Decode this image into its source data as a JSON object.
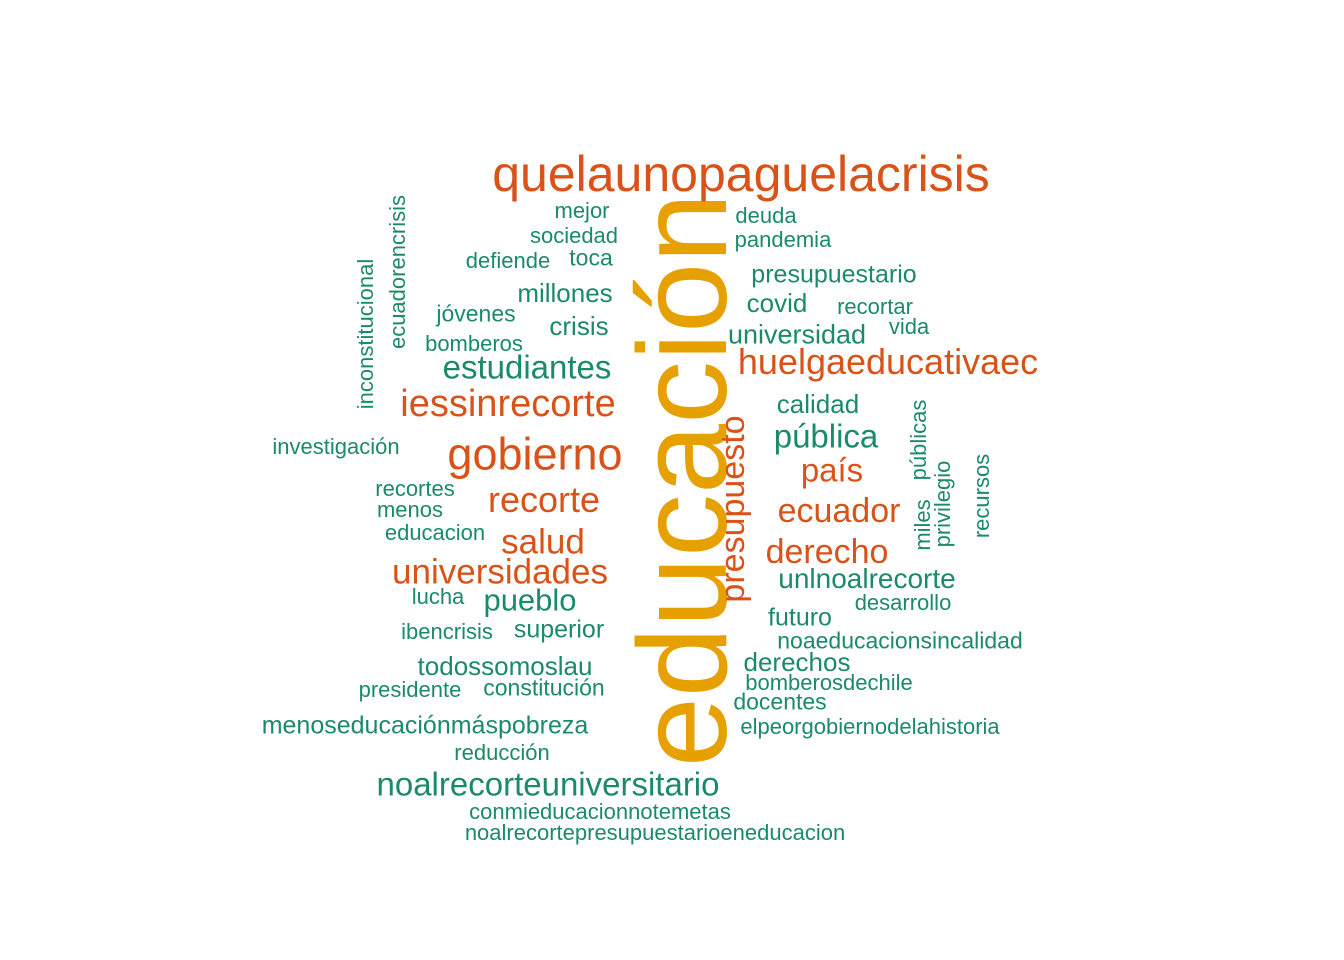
{
  "colors": {
    "top": "#E6A100",
    "mid": "#D95319",
    "low": "#1B8A6B"
  },
  "words": [
    {
      "text": "educación",
      "tier": "top"
    },
    {
      "text": "quelaunopaguelacrisis",
      "tier": "mid"
    },
    {
      "text": "gobierno",
      "tier": "mid"
    },
    {
      "text": "iessinrecorte",
      "tier": "mid"
    },
    {
      "text": "recorte",
      "tier": "mid"
    },
    {
      "text": "huelgaeducativaec",
      "tier": "mid"
    },
    {
      "text": "presupuesto",
      "tier": "mid"
    },
    {
      "text": "universidades",
      "tier": "mid"
    },
    {
      "text": "salud",
      "tier": "mid"
    },
    {
      "text": "ecuador",
      "tier": "mid"
    },
    {
      "text": "derecho",
      "tier": "mid"
    },
    {
      "text": "país",
      "tier": "mid"
    },
    {
      "text": "noalrecorteuniversitario",
      "tier": "low"
    },
    {
      "text": "estudiantes",
      "tier": "low"
    },
    {
      "text": "pública",
      "tier": "low"
    },
    {
      "text": "pueblo",
      "tier": "low"
    },
    {
      "text": "menoseducaciónmáspobreza",
      "tier": "low"
    },
    {
      "text": "todossomoslau",
      "tier": "low"
    },
    {
      "text": "universidad",
      "tier": "low"
    },
    {
      "text": "unlnoalrecorte",
      "tier": "low"
    },
    {
      "text": "superior",
      "tier": "low"
    },
    {
      "text": "derechos",
      "tier": "low"
    },
    {
      "text": "millones",
      "tier": "low"
    },
    {
      "text": "crisis",
      "tier": "low"
    },
    {
      "text": "calidad",
      "tier": "low"
    },
    {
      "text": "covid",
      "tier": "low"
    },
    {
      "text": "presupuestario",
      "tier": "low"
    },
    {
      "text": "futuro",
      "tier": "low"
    },
    {
      "text": "constitución",
      "tier": "low"
    },
    {
      "text": "noaeducacionsincalidad",
      "tier": "low"
    },
    {
      "text": "elpeorgobiernodelahistoria",
      "tier": "low"
    },
    {
      "text": "docentes",
      "tier": "low"
    },
    {
      "text": "jóvenes",
      "tier": "low"
    },
    {
      "text": "toca",
      "tier": "low"
    },
    {
      "text": "sociedad",
      "tier": "low"
    },
    {
      "text": "mejor",
      "tier": "low"
    },
    {
      "text": "defiende",
      "tier": "low"
    },
    {
      "text": "deuda",
      "tier": "low"
    },
    {
      "text": "pandemia",
      "tier": "low"
    },
    {
      "text": "recortar",
      "tier": "low"
    },
    {
      "text": "vida",
      "tier": "low"
    },
    {
      "text": "bomberos",
      "tier": "low"
    },
    {
      "text": "investigación",
      "tier": "low"
    },
    {
      "text": "recortes",
      "tier": "low"
    },
    {
      "text": "menos",
      "tier": "low"
    },
    {
      "text": "educacion",
      "tier": "low"
    },
    {
      "text": "lucha",
      "tier": "low"
    },
    {
      "text": "ibencrisis",
      "tier": "low"
    },
    {
      "text": "presidente",
      "tier": "low"
    },
    {
      "text": "reducción",
      "tier": "low"
    },
    {
      "text": "desarrollo",
      "tier": "low"
    },
    {
      "text": "bomberosdechile",
      "tier": "low"
    },
    {
      "text": "conmieducacionnotemetas",
      "tier": "low"
    },
    {
      "text": "noalrecortepresupuestarioeneducacion",
      "tier": "low"
    },
    {
      "text": "inconstitucional",
      "tier": "low"
    },
    {
      "text": "ecuadorencrisis",
      "tier": "low"
    },
    {
      "text": "públicas",
      "tier": "low"
    },
    {
      "text": "miles",
      "tier": "low"
    },
    {
      "text": "privilegio",
      "tier": "low"
    },
    {
      "text": "recursos",
      "tier": "low"
    }
  ]
}
